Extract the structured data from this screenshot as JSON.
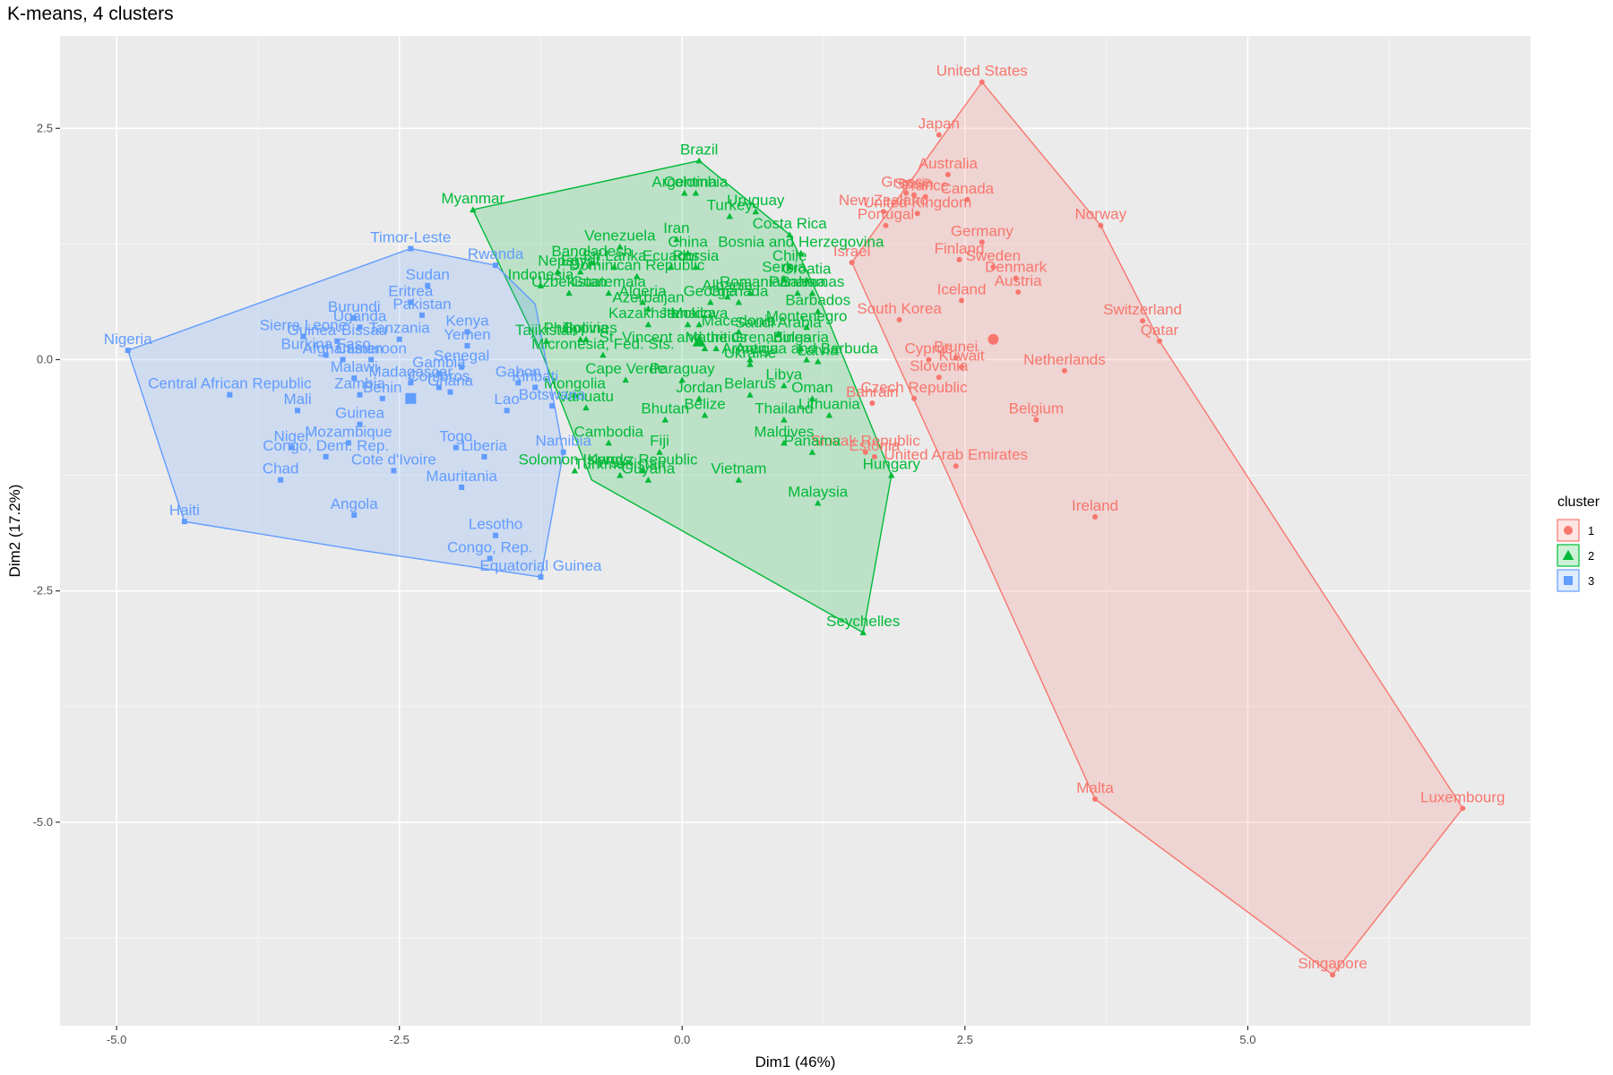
{
  "chart_data": {
    "type": "scatter",
    "title": "K-means, 4 clusters",
    "xlabel": "Dim1 (46%)",
    "ylabel": "Dim2 (17.2%)",
    "xlim": [
      -5.5,
      7.5
    ],
    "ylim": [
      -7.2,
      3.5
    ],
    "x_ticks": [
      -5.0,
      -2.5,
      0.0,
      2.5,
      5.0
    ],
    "x_tick_labels": [
      "-5.0",
      "-2.5",
      "0.0",
      "2.5",
      "5.0"
    ],
    "y_ticks": [
      -5.0,
      -2.5,
      0.0,
      2.5
    ],
    "y_tick_labels": [
      "-5.0",
      "-2.5",
      "0.0",
      "2.5"
    ],
    "grid": true,
    "legend": {
      "title": "cluster",
      "position": "right",
      "entries": [
        {
          "label": "1",
          "color": "#F8766D",
          "shape": "circle"
        },
        {
          "label": "2",
          "color": "#00BA38",
          "shape": "triangle"
        },
        {
          "label": "3",
          "color": "#619CFF",
          "shape": "square"
        }
      ]
    },
    "series": [
      {
        "name": "1",
        "color": "#F8766D",
        "shape": "circle",
        "centroid": [
          2.75,
          0.22
        ],
        "hull": [
          [
            2.65,
            3.0
          ],
          [
            3.7,
            1.45
          ],
          [
            4.22,
            0.2
          ],
          [
            6.9,
            -4.85
          ],
          [
            5.75,
            -6.65
          ],
          [
            3.65,
            -4.75
          ],
          [
            1.5,
            1.05
          ]
        ],
        "points": [
          {
            "label": "United States",
            "x": 2.65,
            "y": 3.0
          },
          {
            "label": "Japan",
            "x": 2.27,
            "y": 2.43
          },
          {
            "label": "Australia",
            "x": 2.35,
            "y": 2.0
          },
          {
            "label": "Greece",
            "x": 1.98,
            "y": 1.8
          },
          {
            "label": "Spain",
            "x": 2.05,
            "y": 1.78
          },
          {
            "label": "France",
            "x": 2.15,
            "y": 1.76
          },
          {
            "label": "Canada",
            "x": 2.52,
            "y": 1.73
          },
          {
            "label": "New Zealand",
            "x": 1.78,
            "y": 1.6
          },
          {
            "label": "United Kingdom",
            "x": 2.08,
            "y": 1.58
          },
          {
            "label": "Portugal",
            "x": 1.8,
            "y": 1.45
          },
          {
            "label": "Norway",
            "x": 3.7,
            "y": 1.45
          },
          {
            "label": "Germany",
            "x": 2.65,
            "y": 1.27
          },
          {
            "label": "Finland",
            "x": 2.45,
            "y": 1.08
          },
          {
            "label": "Israel",
            "x": 1.5,
            "y": 1.05
          },
          {
            "label": "Sweden",
            "x": 2.75,
            "y": 1.0
          },
          {
            "label": "Denmark",
            "x": 2.95,
            "y": 0.88
          },
          {
            "label": "Austria",
            "x": 2.97,
            "y": 0.73
          },
          {
            "label": "Iceland",
            "x": 2.47,
            "y": 0.64
          },
          {
            "label": "South Korea",
            "x": 1.92,
            "y": 0.43
          },
          {
            "label": "Switzerland",
            "x": 4.07,
            "y": 0.42
          },
          {
            "label": "Qatar",
            "x": 4.22,
            "y": 0.2
          },
          {
            "label": "Cyprus",
            "x": 2.18,
            "y": 0.0
          },
          {
            "label": "Brunei",
            "x": 2.42,
            "y": 0.02
          },
          {
            "label": "Kuwait",
            "x": 2.47,
            "y": -0.08
          },
          {
            "label": "Netherlands",
            "x": 3.38,
            "y": -0.12
          },
          {
            "label": "Slovenia",
            "x": 2.27,
            "y": -0.19
          },
          {
            "label": "Czech Republic",
            "x": 2.05,
            "y": -0.42
          },
          {
            "label": "Bahrain",
            "x": 1.68,
            "y": -0.47
          },
          {
            "label": "Belgium",
            "x": 3.13,
            "y": -0.65
          },
          {
            "label": "Slovak Republic",
            "x": 1.62,
            "y": -1.0
          },
          {
            "label": "Estonia",
            "x": 1.7,
            "y": -1.05
          },
          {
            "label": "United Arab Emirates",
            "x": 2.42,
            "y": -1.15
          },
          {
            "label": "Ireland",
            "x": 3.65,
            "y": -1.7
          },
          {
            "label": "Malta",
            "x": 3.65,
            "y": -4.75
          },
          {
            "label": "Luxembourg",
            "x": 6.9,
            "y": -4.85
          },
          {
            "label": "Singapore",
            "x": 5.75,
            "y": -6.65
          }
        ]
      },
      {
        "name": "2",
        "color": "#00BA38",
        "shape": "triangle",
        "centroid": [
          0.15,
          0.2
        ],
        "hull": [
          [
            -1.85,
            1.62
          ],
          [
            0.15,
            2.15
          ],
          [
            0.95,
            1.35
          ],
          [
            1.2,
            0.7
          ],
          [
            1.85,
            -1.25
          ],
          [
            1.6,
            -2.95
          ],
          [
            -0.8,
            -1.3
          ],
          [
            -1.25,
            0.1
          ]
        ],
        "points": [
          {
            "label": "Brazil",
            "x": 0.15,
            "y": 2.15
          },
          {
            "label": "Argentina",
            "x": 0.02,
            "y": 1.8
          },
          {
            "label": "Colombia",
            "x": 0.12,
            "y": 1.8
          },
          {
            "label": "Myanmar",
            "x": -1.85,
            "y": 1.62
          },
          {
            "label": "Uruguay",
            "x": 0.65,
            "y": 1.6
          },
          {
            "label": "Turkey",
            "x": 0.42,
            "y": 1.55
          },
          {
            "label": "Costa Rica",
            "x": 0.95,
            "y": 1.35
          },
          {
            "label": "Venezuela",
            "x": -0.55,
            "y": 1.22
          },
          {
            "label": "Iran",
            "x": -0.05,
            "y": 1.3
          },
          {
            "label": "China",
            "x": 0.05,
            "y": 1.15
          },
          {
            "label": "Ecuador",
            "x": -0.1,
            "y": 1.0
          },
          {
            "label": "Russia",
            "x": 0.12,
            "y": 1.0
          },
          {
            "label": "Bosnia and Herzegovina",
            "x": 1.05,
            "y": 1.15
          },
          {
            "label": "Chile",
            "x": 0.95,
            "y": 1.0
          },
          {
            "label": "Sri Lanka",
            "x": -0.6,
            "y": 1.0
          },
          {
            "label": "Bangladesh",
            "x": -0.8,
            "y": 1.05
          },
          {
            "label": "Nepal",
            "x": -1.1,
            "y": 0.95
          },
          {
            "label": "Egypt",
            "x": -0.9,
            "y": 0.95
          },
          {
            "label": "Dominican Republic",
            "x": -0.4,
            "y": 0.9
          },
          {
            "label": "Serbia",
            "x": 0.9,
            "y": 0.88
          },
          {
            "label": "Croatia",
            "x": 1.1,
            "y": 0.86
          },
          {
            "label": "Indonesia",
            "x": -1.25,
            "y": 0.8
          },
          {
            "label": "Uzbekistan",
            "x": -1.0,
            "y": 0.72
          },
          {
            "label": "Guatemala",
            "x": -0.65,
            "y": 0.72
          },
          {
            "label": "Romania",
            "x": 0.6,
            "y": 0.72
          },
          {
            "label": "Bahamas",
            "x": 1.15,
            "y": 0.72
          },
          {
            "label": "Panama",
            "x": 1.02,
            "y": 0.72
          },
          {
            "label": "Algeria",
            "x": -0.35,
            "y": 0.62
          },
          {
            "label": "Georgia",
            "x": 0.25,
            "y": 0.62
          },
          {
            "label": "Albania",
            "x": 0.4,
            "y": 0.68
          },
          {
            "label": "Grenada",
            "x": 0.5,
            "y": 0.62
          },
          {
            "label": "Azerbaijan",
            "x": -0.3,
            "y": 0.55
          },
          {
            "label": "Barbados",
            "x": 1.2,
            "y": 0.52
          },
          {
            "label": "Tajikistan",
            "x": -1.2,
            "y": 0.2
          },
          {
            "label": "Philippines",
            "x": -0.9,
            "y": 0.22
          },
          {
            "label": "Bolivia",
            "x": -0.85,
            "y": 0.22
          },
          {
            "label": "Kazakhstan",
            "x": -0.3,
            "y": 0.38
          },
          {
            "label": "Moldova",
            "x": 0.15,
            "y": 0.38
          },
          {
            "label": "Jamaica",
            "x": 0.05,
            "y": 0.38
          },
          {
            "label": "Macedonia",
            "x": 0.5,
            "y": 0.3
          },
          {
            "label": "Montenegro",
            "x": 1.1,
            "y": 0.35
          },
          {
            "label": "Saudi Arabia",
            "x": 0.85,
            "y": 0.28
          },
          {
            "label": "Micronesia, Fed. Sts.",
            "x": -0.7,
            "y": 0.05
          },
          {
            "label": "St. Vincent and the Grenadines",
            "x": 0.2,
            "y": 0.12
          },
          {
            "label": "Mauritius",
            "x": 0.3,
            "y": 0.12
          },
          {
            "label": "Bulgaria",
            "x": 1.05,
            "y": 0.12
          },
          {
            "label": "Armenia",
            "x": 0.6,
            "y": 0.0
          },
          {
            "label": "Antigua and Barbuda",
            "x": 1.1,
            "y": 0.0
          },
          {
            "label": "Ukraine",
            "x": 0.6,
            "y": -0.05
          },
          {
            "label": "Latvia",
            "x": 1.2,
            "y": -0.02
          },
          {
            "label": "Cape Verde",
            "x": -0.5,
            "y": -0.22
          },
          {
            "label": "Paraguay",
            "x": 0.0,
            "y": -0.22
          },
          {
            "label": "Mongolia",
            "x": -0.95,
            "y": -0.38
          },
          {
            "label": "Jordan",
            "x": 0.15,
            "y": -0.42
          },
          {
            "label": "Belarus",
            "x": 0.6,
            "y": -0.38
          },
          {
            "label": "Libya",
            "x": 0.9,
            "y": -0.28
          },
          {
            "label": "Oman",
            "x": 1.15,
            "y": -0.42
          },
          {
            "label": "Vanuatu",
            "x": -0.85,
            "y": -0.52
          },
          {
            "label": "Bhutan",
            "x": -0.15,
            "y": -0.65
          },
          {
            "label": "Belize",
            "x": 0.2,
            "y": -0.6
          },
          {
            "label": "Thailand",
            "x": 0.9,
            "y": -0.65
          },
          {
            "label": "Lithuania",
            "x": 1.3,
            "y": -0.6
          },
          {
            "label": "Cambodia",
            "x": -0.65,
            "y": -0.9
          },
          {
            "label": "Fiji",
            "x": -0.2,
            "y": -1.0
          },
          {
            "label": "Maldives",
            "x": 0.9,
            "y": -0.9
          },
          {
            "label": "Panama",
            "x": 1.15,
            "y": -1.0
          },
          {
            "label": "Solomon Islands",
            "x": -0.95,
            "y": -1.2
          },
          {
            "label": "Turkmenistan",
            "x": -0.55,
            "y": -1.25
          },
          {
            "label": "Kyrgyz Republic",
            "x": -0.35,
            "y": -1.2
          },
          {
            "label": "Guyana",
            "x": -0.3,
            "y": -1.3
          },
          {
            "label": "Vietnam",
            "x": 0.5,
            "y": -1.3
          },
          {
            "label": "Hungary",
            "x": 1.85,
            "y": -1.25
          },
          {
            "label": "Malaysia",
            "x": 1.2,
            "y": -1.55
          },
          {
            "label": "Seychelles",
            "x": 1.6,
            "y": -2.95
          }
        ]
      },
      {
        "name": "3",
        "color": "#619CFF",
        "shape": "square",
        "centroid": [
          -2.4,
          -0.42
        ],
        "hull": [
          [
            -4.9,
            0.1
          ],
          [
            -2.4,
            1.2
          ],
          [
            -1.65,
            1.02
          ],
          [
            -1.3,
            0.6
          ],
          [
            -1.05,
            -1.0
          ],
          [
            -1.25,
            -2.35
          ],
          [
            -2.9,
            -2.05
          ],
          [
            -4.4,
            -1.75
          ]
        ],
        "points": [
          {
            "label": "Nigeria",
            "x": -4.9,
            "y": 0.1
          },
          {
            "label": "Timor-Leste",
            "x": -2.4,
            "y": 1.2
          },
          {
            "label": "Rwanda",
            "x": -1.65,
            "y": 1.02
          },
          {
            "label": "Sudan",
            "x": -2.25,
            "y": 0.8
          },
          {
            "label": "Eritrea",
            "x": -2.4,
            "y": 0.62
          },
          {
            "label": "Pakistan",
            "x": -2.3,
            "y": 0.48
          },
          {
            "label": "Burundi",
            "x": -2.9,
            "y": 0.45
          },
          {
            "label": "Uganda",
            "x": -2.85,
            "y": 0.35
          },
          {
            "label": "Sierra Leone",
            "x": -3.35,
            "y": 0.25
          },
          {
            "label": "Tanzania",
            "x": -2.5,
            "y": 0.22
          },
          {
            "label": "Guinea-Bissau",
            "x": -3.05,
            "y": 0.2
          },
          {
            "label": "Burkina Faso",
            "x": -3.15,
            "y": 0.05
          },
          {
            "label": "Afghanistan",
            "x": -3.0,
            "y": 0.0
          },
          {
            "label": "Cameroon",
            "x": -2.75,
            "y": 0.0
          },
          {
            "label": "Kenya",
            "x": -1.9,
            "y": 0.3
          },
          {
            "label": "Yemen",
            "x": -1.9,
            "y": 0.15
          },
          {
            "label": "Senegal",
            "x": -1.95,
            "y": -0.08
          },
          {
            "label": "Malawi",
            "x": -2.9,
            "y": -0.2
          },
          {
            "label": "Gambia",
            "x": -2.15,
            "y": -0.15
          },
          {
            "label": "Madagascar",
            "x": -2.4,
            "y": -0.25
          },
          {
            "label": "Comoros",
            "x": -2.15,
            "y": -0.3
          },
          {
            "label": "Ghana",
            "x": -2.05,
            "y": -0.35
          },
          {
            "label": "Central African Republic",
            "x": -4.0,
            "y": -0.38
          },
          {
            "label": "Zambia",
            "x": -2.85,
            "y": -0.38
          },
          {
            "label": "Benin",
            "x": -2.65,
            "y": -0.42
          },
          {
            "label": "Mali",
            "x": -3.4,
            "y": -0.55
          },
          {
            "label": "Gabon",
            "x": -1.45,
            "y": -0.25
          },
          {
            "label": "Kiribati",
            "x": -1.3,
            "y": -0.3
          },
          {
            "label": "Lao",
            "x": -1.55,
            "y": -0.55
          },
          {
            "label": "Botswana",
            "x": -1.15,
            "y": -0.5
          },
          {
            "label": "Guinea",
            "x": -2.85,
            "y": -0.7
          },
          {
            "label": "Mozambique",
            "x": -2.95,
            "y": -0.9
          },
          {
            "label": "Niger",
            "x": -3.45,
            "y": -0.95
          },
          {
            "label": "Congo, Dem. Rep.",
            "x": -3.15,
            "y": -1.05
          },
          {
            "label": "Cote d'Ivoire",
            "x": -2.55,
            "y": -1.2
          },
          {
            "label": "Togo",
            "x": -2.0,
            "y": -0.95
          },
          {
            "label": "Liberia",
            "x": -1.75,
            "y": -1.05
          },
          {
            "label": "Namibia",
            "x": -1.05,
            "y": -1.0
          },
          {
            "label": "Chad",
            "x": -3.55,
            "y": -1.3
          },
          {
            "label": "Mauritania",
            "x": -1.95,
            "y": -1.38
          },
          {
            "label": "Haiti",
            "x": -4.4,
            "y": -1.75
          },
          {
            "label": "Angola",
            "x": -2.9,
            "y": -1.68
          },
          {
            "label": "Lesotho",
            "x": -1.65,
            "y": -1.9
          },
          {
            "label": "Congo, Rep.",
            "x": -1.7,
            "y": -2.15
          },
          {
            "label": "Equatorial Guinea",
            "x": -1.25,
            "y": -2.35
          }
        ]
      }
    ]
  }
}
